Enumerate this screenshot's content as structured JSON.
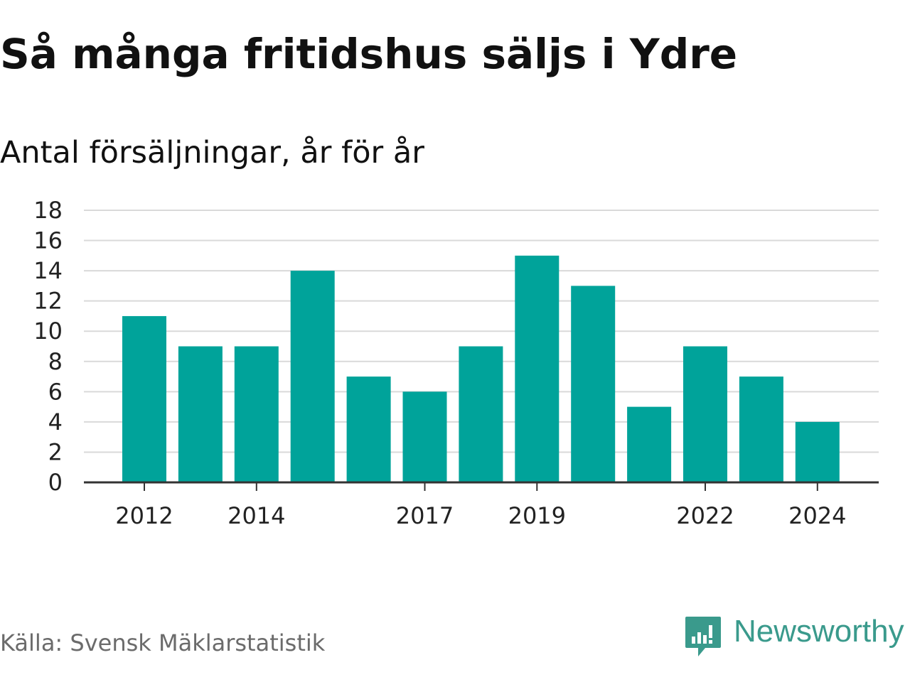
{
  "header": {
    "title": "Så många fritidshus säljs i Ydre",
    "subtitle": "Antal försäljningar, år för år"
  },
  "chart_data": {
    "type": "bar",
    "categories": [
      "2012",
      "2013",
      "2014",
      "2015",
      "2016",
      "2017",
      "2018",
      "2019",
      "2020",
      "2021",
      "2022",
      "2023",
      "2024"
    ],
    "values": [
      11,
      9,
      9,
      14,
      7,
      6,
      9,
      15,
      13,
      5,
      9,
      7,
      4
    ],
    "x_tick_labels": [
      "2012",
      "2014",
      "2017",
      "2019",
      "2022",
      "2024"
    ],
    "y_ticks": [
      "0",
      "2",
      "4",
      "6",
      "8",
      "10",
      "12",
      "14",
      "16",
      "18"
    ],
    "ylim": [
      0,
      18
    ],
    "grid": true,
    "bar_color": "#00a39a",
    "grid_color": "#d9d9d9",
    "axis_color": "#333333"
  },
  "footer": {
    "source": "Källa: Svensk Mäklarstatistik",
    "brand": "Newsworthy",
    "brand_color": "#3a9a8c"
  }
}
